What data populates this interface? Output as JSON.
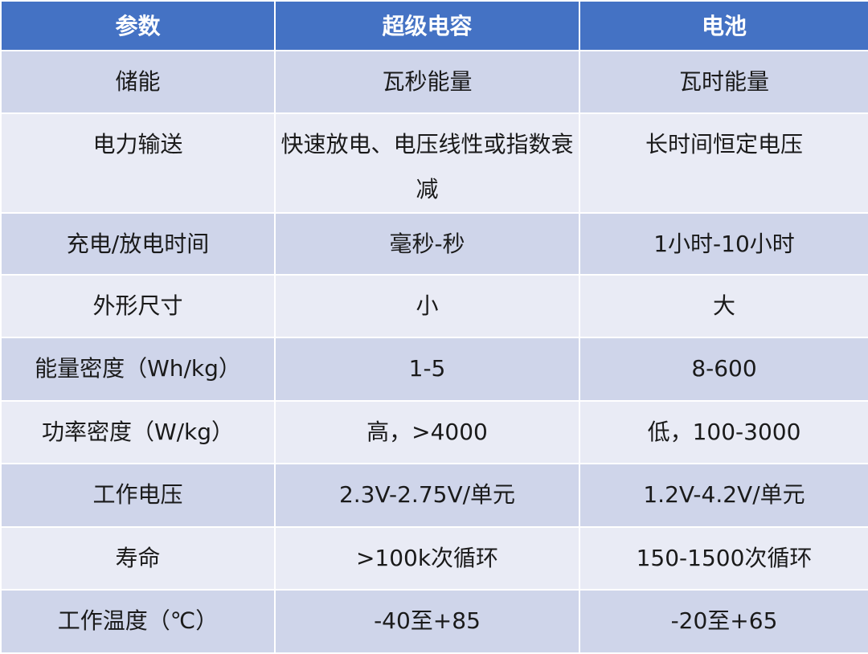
{
  "colors": {
    "header": "#4472c4",
    "row_dark": "#cfd5ea",
    "row_light": "#e9ebf5"
  },
  "headers": [
    "参数",
    "超级电容",
    "电池"
  ],
  "rows": [
    [
      "储能",
      "瓦秒能量",
      "瓦时能量"
    ],
    [
      "电力输送",
      "快速放电、电压线性或指数衰减",
      "长时间恒定电压"
    ],
    [
      "充电/放电时间",
      "毫秒-秒",
      "1小时-10小时"
    ],
    [
      "外形尺寸",
      "小",
      "大"
    ],
    [
      "能量密度（Wh/kg）",
      "1-5",
      "8-600"
    ],
    [
      "功率密度（W/kg）",
      "高，>4000",
      "低，100-3000"
    ],
    [
      "工作电压",
      "2.3V-2.75V/单元",
      "1.2V-4.2V/单元"
    ],
    [
      "寿命",
      ">100k次循环",
      "150-1500次循环"
    ],
    [
      "工作温度（℃）",
      "-40至+85",
      "-20至+65"
    ]
  ]
}
